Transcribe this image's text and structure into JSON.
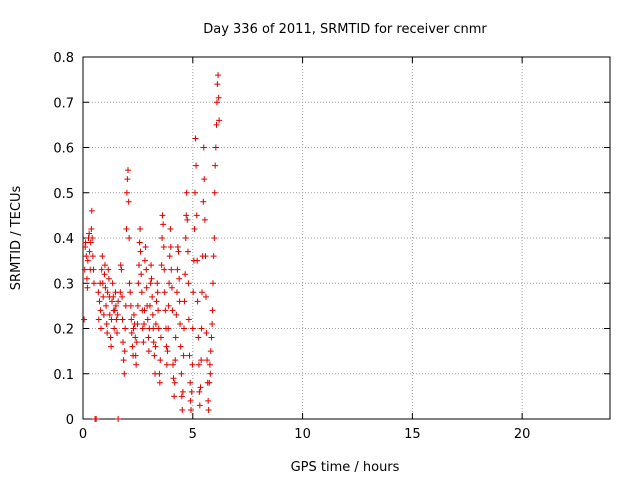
{
  "chart_data": {
    "type": "scatter",
    "title": "Day 336 of 2011, SRMTID for receiver cnmr",
    "xlabel": "GPS time / hours",
    "ylabel": "SRMTID / TECUs",
    "xlim": [
      0,
      24
    ],
    "ylim": [
      0,
      0.8
    ],
    "x_ticks": [
      0,
      5,
      10,
      15,
      20
    ],
    "x_tick_labels": [
      "0",
      "5",
      "10",
      "15",
      "20"
    ],
    "y_ticks": [
      0,
      0.1,
      0.2,
      0.3,
      0.4,
      0.5,
      0.6,
      0.7,
      0.8
    ],
    "y_tick_labels": [
      "0",
      "0.1",
      "0.2",
      "0.3",
      "0.4",
      "0.5",
      "0.6",
      "0.7",
      "0.8"
    ],
    "grid": true,
    "marker": "+",
    "color": "#dd0000",
    "series": [
      {
        "name": "SRMTID",
        "points": [
          [
            0.05,
            0.22
          ],
          [
            0.08,
            0.33
          ],
          [
            0.1,
            0.38
          ],
          [
            0.12,
            0.39
          ],
          [
            0.15,
            0.36
          ],
          [
            0.18,
            0.31
          ],
          [
            0.2,
            0.29
          ],
          [
            0.22,
            0.35
          ],
          [
            0.25,
            0.4
          ],
          [
            0.28,
            0.41
          ],
          [
            0.3,
            0.37
          ],
          [
            0.33,
            0.33
          ],
          [
            0.35,
            0.39
          ],
          [
            0.38,
            0.42
          ],
          [
            0.4,
            0.46
          ],
          [
            0.42,
            0.4
          ],
          [
            0.45,
            0.36
          ],
          [
            0.48,
            0.33
          ],
          [
            0.5,
            0.3
          ],
          [
            0.55,
            0.0
          ],
          [
            0.6,
            0.0
          ],
          [
            0.7,
            0.28
          ],
          [
            0.72,
            0.22
          ],
          [
            0.75,
            0.26
          ],
          [
            0.78,
            0.3
          ],
          [
            0.8,
            0.24
          ],
          [
            0.82,
            0.2
          ],
          [
            0.85,
            0.33
          ],
          [
            0.88,
            0.36
          ],
          [
            0.9,
            0.3
          ],
          [
            0.92,
            0.27
          ],
          [
            0.95,
            0.23
          ],
          [
            0.98,
            0.32
          ],
          [
            1.0,
            0.34
          ],
          [
            1.02,
            0.29
          ],
          [
            1.05,
            0.25
          ],
          [
            1.08,
            0.21
          ],
          [
            1.1,
            0.19
          ],
          [
            1.12,
            0.28
          ],
          [
            1.15,
            0.33
          ],
          [
            1.18,
            0.31
          ],
          [
            1.2,
            0.27
          ],
          [
            1.22,
            0.23
          ],
          [
            1.25,
            0.18
          ],
          [
            1.28,
            0.16
          ],
          [
            1.3,
            0.22
          ],
          [
            1.32,
            0.26
          ],
          [
            1.35,
            0.3
          ],
          [
            1.38,
            0.27
          ],
          [
            1.4,
            0.24
          ],
          [
            1.42,
            0.2
          ],
          [
            1.45,
            0.24
          ],
          [
            1.48,
            0.28
          ],
          [
            1.5,
            0.25
          ],
          [
            1.52,
            0.22
          ],
          [
            1.55,
            0.19
          ],
          [
            1.58,
            0.23
          ],
          [
            1.6,
            0.26
          ],
          [
            1.6,
            0.0
          ],
          [
            1.7,
            0.28
          ],
          [
            1.72,
            0.34
          ],
          [
            1.75,
            0.33
          ],
          [
            1.78,
            0.27
          ],
          [
            1.8,
            0.22
          ],
          [
            1.82,
            0.17
          ],
          [
            1.85,
            0.13
          ],
          [
            1.88,
            0.1
          ],
          [
            1.9,
            0.15
          ],
          [
            1.92,
            0.2
          ],
          [
            1.95,
            0.25
          ],
          [
            1.98,
            0.42
          ],
          [
            2.0,
            0.5
          ],
          [
            2.02,
            0.53
          ],
          [
            2.05,
            0.55
          ],
          [
            2.08,
            0.48
          ],
          [
            2.1,
            0.4
          ],
          [
            2.12,
            0.3
          ],
          [
            2.15,
            0.28
          ],
          [
            2.18,
            0.25
          ],
          [
            2.2,
            0.22
          ],
          [
            2.22,
            0.19
          ],
          [
            2.25,
            0.16
          ],
          [
            2.28,
            0.14
          ],
          [
            2.3,
            0.2
          ],
          [
            2.32,
            0.23
          ],
          [
            2.35,
            0.21
          ],
          [
            2.38,
            0.18
          ],
          [
            2.4,
            0.14
          ],
          [
            2.42,
            0.12
          ],
          [
            2.45,
            0.17
          ],
          [
            2.48,
            0.21
          ],
          [
            2.5,
            0.25
          ],
          [
            2.52,
            0.3
          ],
          [
            2.55,
            0.34
          ],
          [
            2.58,
            0.39
          ],
          [
            2.6,
            0.42
          ],
          [
            2.62,
            0.37
          ],
          [
            2.65,
            0.32
          ],
          [
            2.68,
            0.28
          ],
          [
            2.7,
            0.24
          ],
          [
            2.72,
            0.2
          ],
          [
            2.75,
            0.17
          ],
          [
            2.78,
            0.21
          ],
          [
            2.8,
            0.24
          ],
          [
            2.82,
            0.35
          ],
          [
            2.85,
            0.38
          ],
          [
            2.88,
            0.33
          ],
          [
            2.9,
            0.29
          ],
          [
            2.92,
            0.25
          ],
          [
            2.95,
            0.22
          ],
          [
            2.98,
            0.18
          ],
          [
            3.0,
            0.15
          ],
          [
            3.02,
            0.2
          ],
          [
            3.05,
            0.25
          ],
          [
            3.08,
            0.3
          ],
          [
            3.1,
            0.34
          ],
          [
            3.12,
            0.31
          ],
          [
            3.15,
            0.27
          ],
          [
            3.18,
            0.23
          ],
          [
            3.2,
            0.2
          ],
          [
            3.22,
            0.17
          ],
          [
            3.25,
            0.14
          ],
          [
            3.28,
            0.1
          ],
          [
            3.3,
            0.16
          ],
          [
            3.32,
            0.21
          ],
          [
            3.35,
            0.26
          ],
          [
            3.38,
            0.3
          ],
          [
            3.4,
            0.28
          ],
          [
            3.42,
            0.24
          ],
          [
            3.45,
            0.2
          ],
          [
            3.48,
            0.1
          ],
          [
            3.5,
            0.08
          ],
          [
            3.52,
            0.13
          ],
          [
            3.55,
            0.18
          ],
          [
            3.58,
            0.34
          ],
          [
            3.6,
            0.4
          ],
          [
            3.62,
            0.45
          ],
          [
            3.65,
            0.43
          ],
          [
            3.68,
            0.38
          ],
          [
            3.7,
            0.33
          ],
          [
            3.72,
            0.28
          ],
          [
            3.75,
            0.24
          ],
          [
            3.78,
            0.2
          ],
          [
            3.8,
            0.16
          ],
          [
            3.82,
            0.12
          ],
          [
            3.85,
            0.15
          ],
          [
            3.88,
            0.2
          ],
          [
            3.9,
            0.25
          ],
          [
            3.92,
            0.3
          ],
          [
            3.95,
            0.36
          ],
          [
            3.98,
            0.42
          ],
          [
            4.0,
            0.38
          ],
          [
            4.02,
            0.33
          ],
          [
            4.05,
            0.29
          ],
          [
            4.08,
            0.24
          ],
          [
            4.1,
            0.12
          ],
          [
            4.12,
            0.09
          ],
          [
            4.15,
            0.05
          ],
          [
            4.18,
            0.08
          ],
          [
            4.2,
            0.13
          ],
          [
            4.22,
            0.18
          ],
          [
            4.25,
            0.23
          ],
          [
            4.28,
            0.28
          ],
          [
            4.3,
            0.33
          ],
          [
            4.32,
            0.38
          ],
          [
            4.35,
            0.37
          ],
          [
            4.38,
            0.31
          ],
          [
            4.4,
            0.26
          ],
          [
            4.42,
            0.21
          ],
          [
            4.45,
            0.16
          ],
          [
            4.48,
            0.1
          ],
          [
            4.5,
            0.05
          ],
          [
            4.52,
            0.02
          ],
          [
            4.55,
            0.06
          ],
          [
            4.58,
            0.14
          ],
          [
            4.6,
            0.2
          ],
          [
            4.62,
            0.26
          ],
          [
            4.65,
            0.32
          ],
          [
            4.68,
            0.4
          ],
          [
            4.7,
            0.45
          ],
          [
            4.72,
            0.5
          ],
          [
            4.75,
            0.44
          ],
          [
            4.78,
            0.37
          ],
          [
            4.8,
            0.3
          ],
          [
            4.82,
            0.22
          ],
          [
            4.85,
            0.14
          ],
          [
            4.88,
            0.08
          ],
          [
            4.9,
            0.04
          ],
          [
            4.92,
            0.02
          ],
          [
            4.95,
            0.06
          ],
          [
            4.98,
            0.12
          ],
          [
            5.0,
            0.2
          ],
          [
            5.02,
            0.28
          ],
          [
            5.05,
            0.35
          ],
          [
            5.08,
            0.42
          ],
          [
            5.1,
            0.5
          ],
          [
            5.12,
            0.62
          ],
          [
            5.15,
            0.56
          ],
          [
            5.18,
            0.45
          ],
          [
            5.2,
            0.35
          ],
          [
            5.22,
            0.26
          ],
          [
            5.25,
            0.18
          ],
          [
            5.28,
            0.12
          ],
          [
            5.3,
            0.06
          ],
          [
            5.32,
            0.03
          ],
          [
            5.35,
            0.07
          ],
          [
            5.38,
            0.13
          ],
          [
            5.4,
            0.2
          ],
          [
            5.42,
            0.28
          ],
          [
            5.45,
            0.36
          ],
          [
            5.48,
            0.48
          ],
          [
            5.5,
            0.6
          ],
          [
            5.52,
            0.53
          ],
          [
            5.55,
            0.44
          ],
          [
            5.58,
            0.36
          ],
          [
            5.6,
            0.27
          ],
          [
            5.62,
            0.19
          ],
          [
            5.65,
            0.13
          ],
          [
            5.68,
            0.08
          ],
          [
            5.7,
            0.04
          ],
          [
            5.72,
            0.02
          ],
          [
            5.75,
            0.08
          ],
          [
            5.78,
            0.12
          ],
          [
            5.8,
            0.1
          ],
          [
            5.82,
            0.15
          ],
          [
            5.85,
            0.18
          ],
          [
            5.88,
            0.21
          ],
          [
            5.9,
            0.24
          ],
          [
            5.92,
            0.3
          ],
          [
            5.95,
            0.36
          ],
          [
            5.98,
            0.4
          ],
          [
            6.0,
            0.5
          ],
          [
            6.02,
            0.56
          ],
          [
            6.05,
            0.6
          ],
          [
            6.08,
            0.65
          ],
          [
            6.1,
            0.7
          ],
          [
            6.12,
            0.74
          ],
          [
            6.15,
            0.76
          ],
          [
            6.18,
            0.71
          ],
          [
            6.2,
            0.66
          ]
        ]
      }
    ]
  }
}
